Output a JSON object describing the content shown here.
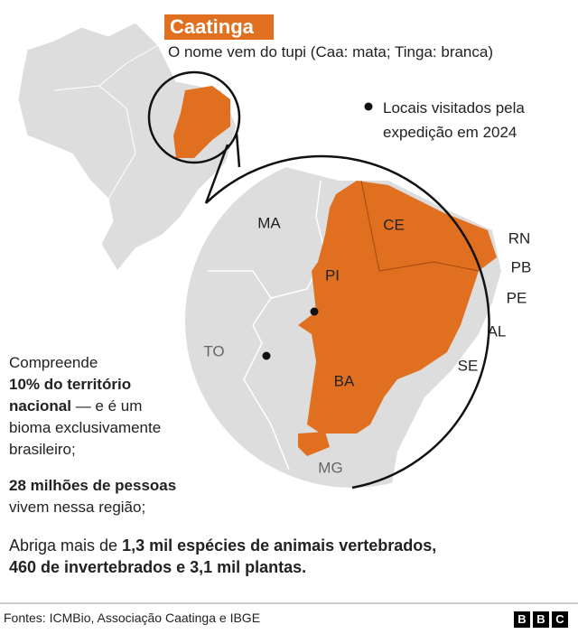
{
  "header": {
    "title": "Caatinga",
    "subtitle": "O nome vem do tupi (Caa: mata; Tinga: branca)"
  },
  "legend": {
    "label": "Locais visitados pela expedição em 2024"
  },
  "states": [
    "MA",
    "CE",
    "RN",
    "PB",
    "PE",
    "AL",
    "SE",
    "PI",
    "TO",
    "BA",
    "MG"
  ],
  "facts": [
    {
      "lines": [
        [
          {
            "text": "Compreende"
          }
        ],
        [
          {
            "text": "10% do território",
            "bold": true
          }
        ],
        [
          {
            "text": "nacional",
            "bold": true
          },
          {
            "text": " — e é um"
          }
        ],
        [
          {
            "text": "bioma exclusivamente"
          }
        ],
        [
          {
            "text": "brasileiro;"
          }
        ]
      ]
    },
    {
      "lines": [
        [
          {
            "text": "28 milhões de pessoas",
            "bold": true
          }
        ],
        [
          {
            "text": "vivem nessa região;"
          }
        ]
      ]
    },
    {
      "lines": [
        [
          {
            "text": "Abriga mais de "
          },
          {
            "text": "1,3 mil espécies de animais vertebrados,",
            "bold": true
          }
        ],
        [
          {
            "text": "460 de invertebrados e 3,1 mil plantas.",
            "bold": true
          }
        ]
      ]
    }
  ],
  "footer": {
    "sources": "Fontes: ICMBio,  Associação Caatinga e IBGE",
    "logo": [
      "B",
      "B",
      "C"
    ]
  }
}
